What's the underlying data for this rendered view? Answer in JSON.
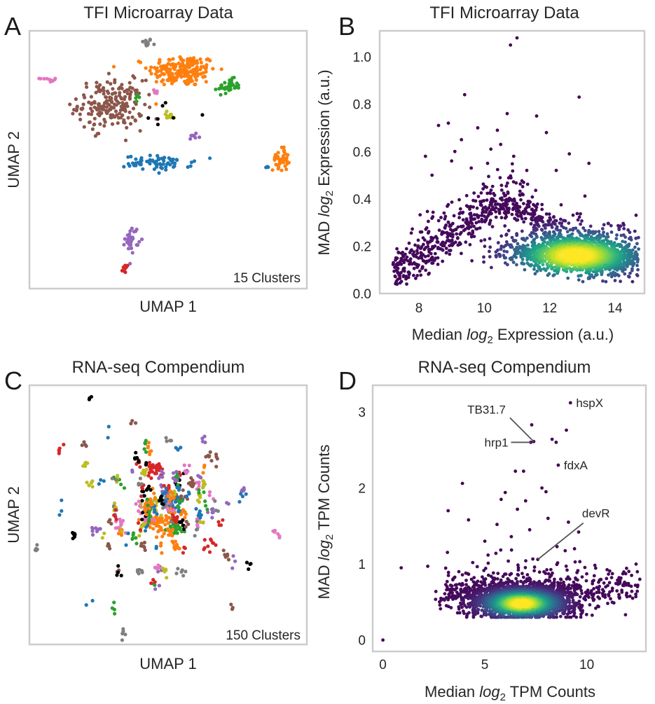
{
  "chart_data": [
    {
      "panel": "A",
      "type": "scatter",
      "title": "TFI Microarray Data",
      "xlabel": "UMAP 1",
      "ylabel": "UMAP 2",
      "annotation": "15 Clusters",
      "grid": false,
      "clusters": [
        {
          "color": "#7f7f7f",
          "center": [
            -0.05,
            0.93
          ],
          "spread": [
            0.04,
            0.03
          ],
          "n": 14
        },
        {
          "color": "#ff7f0e",
          "center": [
            0.24,
            0.72
          ],
          "spread": [
            0.25,
            0.11
          ],
          "n": 190
        },
        {
          "color": "#2ca02c",
          "center": [
            0.62,
            0.6
          ],
          "spread": [
            0.08,
            0.05
          ],
          "n": 40
        },
        {
          "color": "#e377c2",
          "center": [
            -0.85,
            0.65
          ],
          "spread": [
            0.06,
            0.015
          ],
          "n": 10
        },
        {
          "color": "#8c564b",
          "center": [
            -0.34,
            0.46
          ],
          "spread": [
            0.24,
            0.17
          ],
          "n": 200
        },
        {
          "color": "#e377c2",
          "center": [
            0.03,
            0.56
          ],
          "spread": [
            0.03,
            0.015
          ],
          "n": 5
        },
        {
          "color": "#2ca02c",
          "center": [
            -0.12,
            0.5
          ],
          "spread": [
            0.02,
            0.03
          ],
          "n": 5
        },
        {
          "color": "#bcbd22",
          "center": [
            0.14,
            0.38
          ],
          "spread": [
            0.07,
            0.03
          ],
          "n": 12
        },
        {
          "color": "#9467bd",
          "center": [
            0.33,
            0.22
          ],
          "spread": [
            0.05,
            0.04
          ],
          "n": 8
        },
        {
          "color": "#1f77b4",
          "center": [
            0.05,
            0.02
          ],
          "spread": [
            0.25,
            0.05
          ],
          "n": 70
        },
        {
          "color": "#ff7f0e",
          "center": [
            1.04,
            0.05
          ],
          "spread": [
            0.06,
            0.08
          ],
          "n": 40
        },
        {
          "color": "#1f77b4",
          "center": [
            0.93,
            -0.01
          ],
          "spread": [
            0.02,
            0.01
          ],
          "n": 4
        },
        {
          "color": "#9467bd",
          "center": [
            -0.17,
            -0.55
          ],
          "spread": [
            0.05,
            0.09
          ],
          "n": 30
        },
        {
          "color": "#d62728",
          "center": [
            -0.22,
            -0.78
          ],
          "spread": [
            0.02,
            0.03
          ],
          "n": 8
        },
        {
          "color": "#000000",
          "center": [
            0.05,
            0.4
          ],
          "spread": [
            0.22,
            0.15
          ],
          "n": 7
        }
      ]
    },
    {
      "panel": "B",
      "type": "scatter",
      "title": "TFI Microarray Data",
      "xlabel": "Median log2 Expression (a.u.)",
      "ylabel": "MAD log2 Expression (a.u.)",
      "xlim": [
        6.8,
        14.9
      ],
      "ylim": [
        0.0,
        1.11
      ],
      "xticks": [
        "8",
        "10",
        "12",
        "14"
      ],
      "yticks": [
        "0.0",
        "0.2",
        "0.4",
        "0.6",
        "0.8",
        "1.0"
      ],
      "colormap": "viridis density",
      "density_peak": [
        12.8,
        0.16
      ],
      "outliers": [
        [
          11.0,
          1.08
        ],
        [
          10.8,
          1.05
        ],
        [
          9.4,
          0.84
        ],
        [
          12.9,
          0.83
        ],
        [
          10.7,
          0.76
        ],
        [
          11.6,
          0.75
        ],
        [
          8.6,
          0.71
        ],
        [
          8.9,
          0.72
        ],
        [
          9.8,
          0.7
        ],
        [
          10.4,
          0.69
        ],
        [
          11.9,
          0.68
        ],
        [
          9.3,
          0.65
        ],
        [
          10.2,
          0.61
        ],
        [
          8.2,
          0.58
        ],
        [
          9.0,
          0.56
        ],
        [
          13.2,
          0.55
        ],
        [
          12.2,
          0.52
        ],
        [
          9.6,
          0.53
        ],
        [
          10.9,
          0.58
        ],
        [
          10.5,
          0.63
        ],
        [
          9.1,
          0.6
        ],
        [
          12.6,
          0.59
        ],
        [
          8.4,
          0.5
        ],
        [
          10.1,
          0.55
        ],
        [
          11.3,
          0.52
        ]
      ]
    },
    {
      "panel": "C",
      "type": "scatter",
      "title": "RNA-seq Compendium",
      "xlabel": "UMAP 1",
      "ylabel": "UMAP 2",
      "annotation": "150 Clusters",
      "grid": false,
      "palette": [
        "#1f77b4",
        "#ff7f0e",
        "#2ca02c",
        "#d62728",
        "#9467bd",
        "#8c564b",
        "#e377c2",
        "#7f7f7f",
        "#bcbd22",
        "#000000"
      ],
      "n_clusters": 150,
      "dense_clusters": [
        {
          "color": "#d62728",
          "center": [
            -0.05,
            0.35
          ],
          "spread": [
            0.05,
            0.05
          ],
          "n": 30
        },
        {
          "color": "#ff7f0e",
          "center": [
            -0.02,
            -0.05
          ],
          "spread": [
            0.12,
            0.05
          ],
          "n": 60
        },
        {
          "color": "#bcbd22",
          "center": [
            -0.08,
            0.07
          ],
          "spread": [
            0.05,
            0.06
          ],
          "n": 30
        },
        {
          "color": "#1f77b4",
          "center": [
            0.08,
            0.08
          ],
          "spread": [
            0.08,
            0.05
          ],
          "n": 30
        },
        {
          "color": "#2ca02c",
          "center": [
            0.1,
            -0.1
          ],
          "spread": [
            0.06,
            0.04
          ],
          "n": 20
        },
        {
          "color": "#e377c2",
          "center": [
            -0.12,
            0.0
          ],
          "spread": [
            0.06,
            0.06
          ],
          "n": 20
        },
        {
          "color": "#9467bd",
          "center": [
            0.05,
            0.18
          ],
          "spread": [
            0.05,
            0.05
          ],
          "n": 15
        },
        {
          "color": "#8c564b",
          "center": [
            0.12,
            0.15
          ],
          "spread": [
            0.05,
            0.04
          ],
          "n": 15
        }
      ]
    },
    {
      "panel": "D",
      "type": "scatter",
      "title": "RNA-seq Compendium",
      "xlabel": "Median log2 TPM Counts",
      "ylabel": "MAD log2 TPM Counts",
      "xlim": [
        -0.5,
        12.9
      ],
      "ylim": [
        -0.15,
        3.35
      ],
      "xticks": [
        "0",
        "5",
        "10"
      ],
      "yticks": [
        "0",
        "1",
        "2",
        "3"
      ],
      "colormap": "viridis density",
      "density_peak": [
        6.8,
        0.48
      ],
      "annotations": [
        {
          "label": "hspX",
          "point": [
            9.2,
            3.12
          ]
        },
        {
          "label": "TB31.7",
          "point": [
            7.4,
            2.61
          ]
        },
        {
          "label": "hrp1",
          "point": [
            7.25,
            2.6
          ]
        },
        {
          "label": "fdxA",
          "point": [
            8.6,
            2.3
          ]
        },
        {
          "label": "devR",
          "point": [
            7.6,
            1.06
          ]
        }
      ],
      "outliers": [
        [
          0.0,
          0.0
        ],
        [
          9.2,
          3.12
        ],
        [
          7.3,
          2.83
        ],
        [
          9.0,
          2.76
        ],
        [
          8.3,
          2.64
        ],
        [
          8.5,
          2.6
        ],
        [
          7.4,
          2.61
        ],
        [
          7.25,
          2.6
        ],
        [
          8.6,
          2.3
        ],
        [
          6.5,
          2.22
        ],
        [
          6.9,
          2.22
        ],
        [
          3.9,
          2.06
        ],
        [
          7.8,
          2.0
        ],
        [
          6.0,
          1.94
        ],
        [
          8.0,
          1.95
        ],
        [
          5.8,
          1.85
        ],
        [
          7.0,
          1.83
        ],
        [
          6.6,
          1.72
        ],
        [
          3.2,
          1.7
        ],
        [
          8.1,
          1.6
        ],
        [
          4.2,
          1.58
        ],
        [
          9.1,
          1.55
        ],
        [
          5.6,
          1.52
        ],
        [
          7.2,
          1.45
        ],
        [
          9.6,
          1.42
        ],
        [
          6.3,
          1.36
        ],
        [
          5.0,
          1.3
        ],
        [
          9.4,
          1.2
        ],
        [
          12.5,
          0.72
        ],
        [
          12.6,
          0.8
        ],
        [
          12.2,
          0.85
        ],
        [
          2.2,
          0.97
        ],
        [
          0.9,
          0.95
        ],
        [
          7.6,
          1.06
        ]
      ]
    }
  ]
}
